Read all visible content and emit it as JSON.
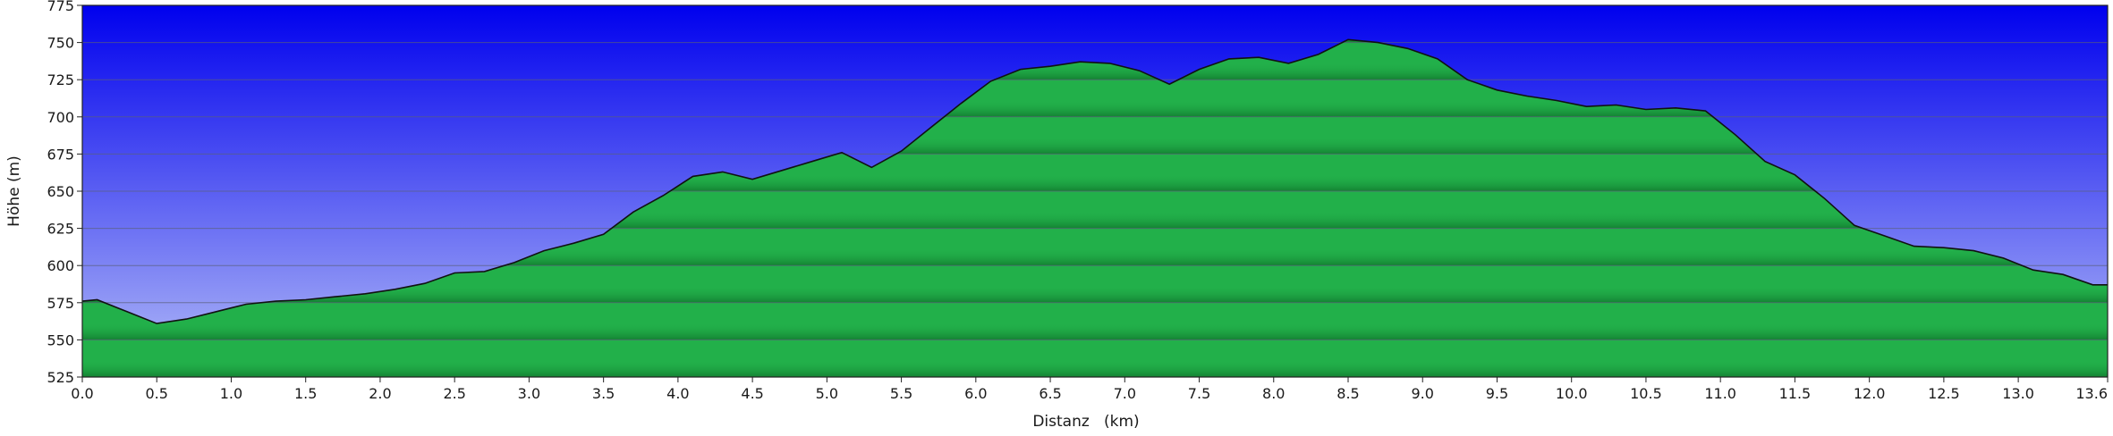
{
  "chart_data": {
    "type": "area",
    "title": "",
    "xlabel": "Distanz   (km)",
    "ylabel": "Höhe (m)",
    "xlim": [
      0,
      13.6
    ],
    "ylim": [
      525,
      775
    ],
    "x_ticks": [
      "0.0",
      "0.5",
      "1.0",
      "1.5",
      "2.0",
      "2.5",
      "3.0",
      "3.5",
      "4.0",
      "4.5",
      "5.0",
      "5.5",
      "6.0",
      "6.5",
      "7.0",
      "7.5",
      "8.0",
      "8.5",
      "9.0",
      "9.5",
      "10.0",
      "10.5",
      "11.0",
      "11.5",
      "12.0",
      "12.5",
      "13.0",
      "13.6"
    ],
    "y_ticks": [
      "525",
      "550",
      "575",
      "600",
      "625",
      "650",
      "675",
      "700",
      "725",
      "750",
      "775"
    ],
    "grid": true,
    "colors": {
      "background_top": "#0000ee",
      "background_bottom": "#b4bdf7",
      "area_light": "#22b04a",
      "area_dark": "#117a2e",
      "outline": "#111111",
      "gridline": "#5a5f7a"
    },
    "series": [
      {
        "x": [
          0,
          0.1,
          0.3,
          0.5,
          0.7,
          0.9,
          1.1,
          1.3,
          1.5,
          1.7,
          1.9,
          2.1,
          2.3,
          2.5,
          2.7,
          2.9,
          3.1,
          3.3,
          3.5,
          3.7,
          3.9,
          4.1,
          4.3,
          4.5,
          4.7,
          4.9,
          5.1,
          5.3,
          5.5,
          5.7,
          5.9,
          6.1,
          6.3,
          6.5,
          6.7,
          6.9,
          7.1,
          7.3,
          7.5,
          7.7,
          7.9,
          8.1,
          8.3,
          8.5,
          8.7,
          8.9,
          9.1,
          9.3,
          9.5,
          9.7,
          9.9,
          10.1,
          10.3,
          10.5,
          10.7,
          10.9,
          11.1,
          11.3,
          11.5,
          11.7,
          11.9,
          12.1,
          12.3,
          12.5,
          12.7,
          12.9,
          13.1,
          13.3,
          13.5,
          13.6
        ],
        "y": [
          576,
          577,
          569,
          561,
          564,
          569,
          574,
          576,
          577,
          579,
          581,
          584,
          588,
          595,
          596,
          602,
          610,
          615,
          621,
          636,
          647,
          660,
          663,
          658,
          664,
          670,
          676,
          666,
          677,
          693,
          709,
          724,
          732,
          734,
          737,
          736,
          731,
          722,
          732,
          739,
          740,
          736,
          742,
          752,
          750,
          746,
          739,
          725,
          718,
          714,
          711,
          707,
          708,
          705,
          706,
          704,
          688,
          670,
          661,
          645,
          627,
          620,
          613,
          612,
          610,
          605,
          597,
          594,
          587,
          587
        ]
      }
    ]
  }
}
